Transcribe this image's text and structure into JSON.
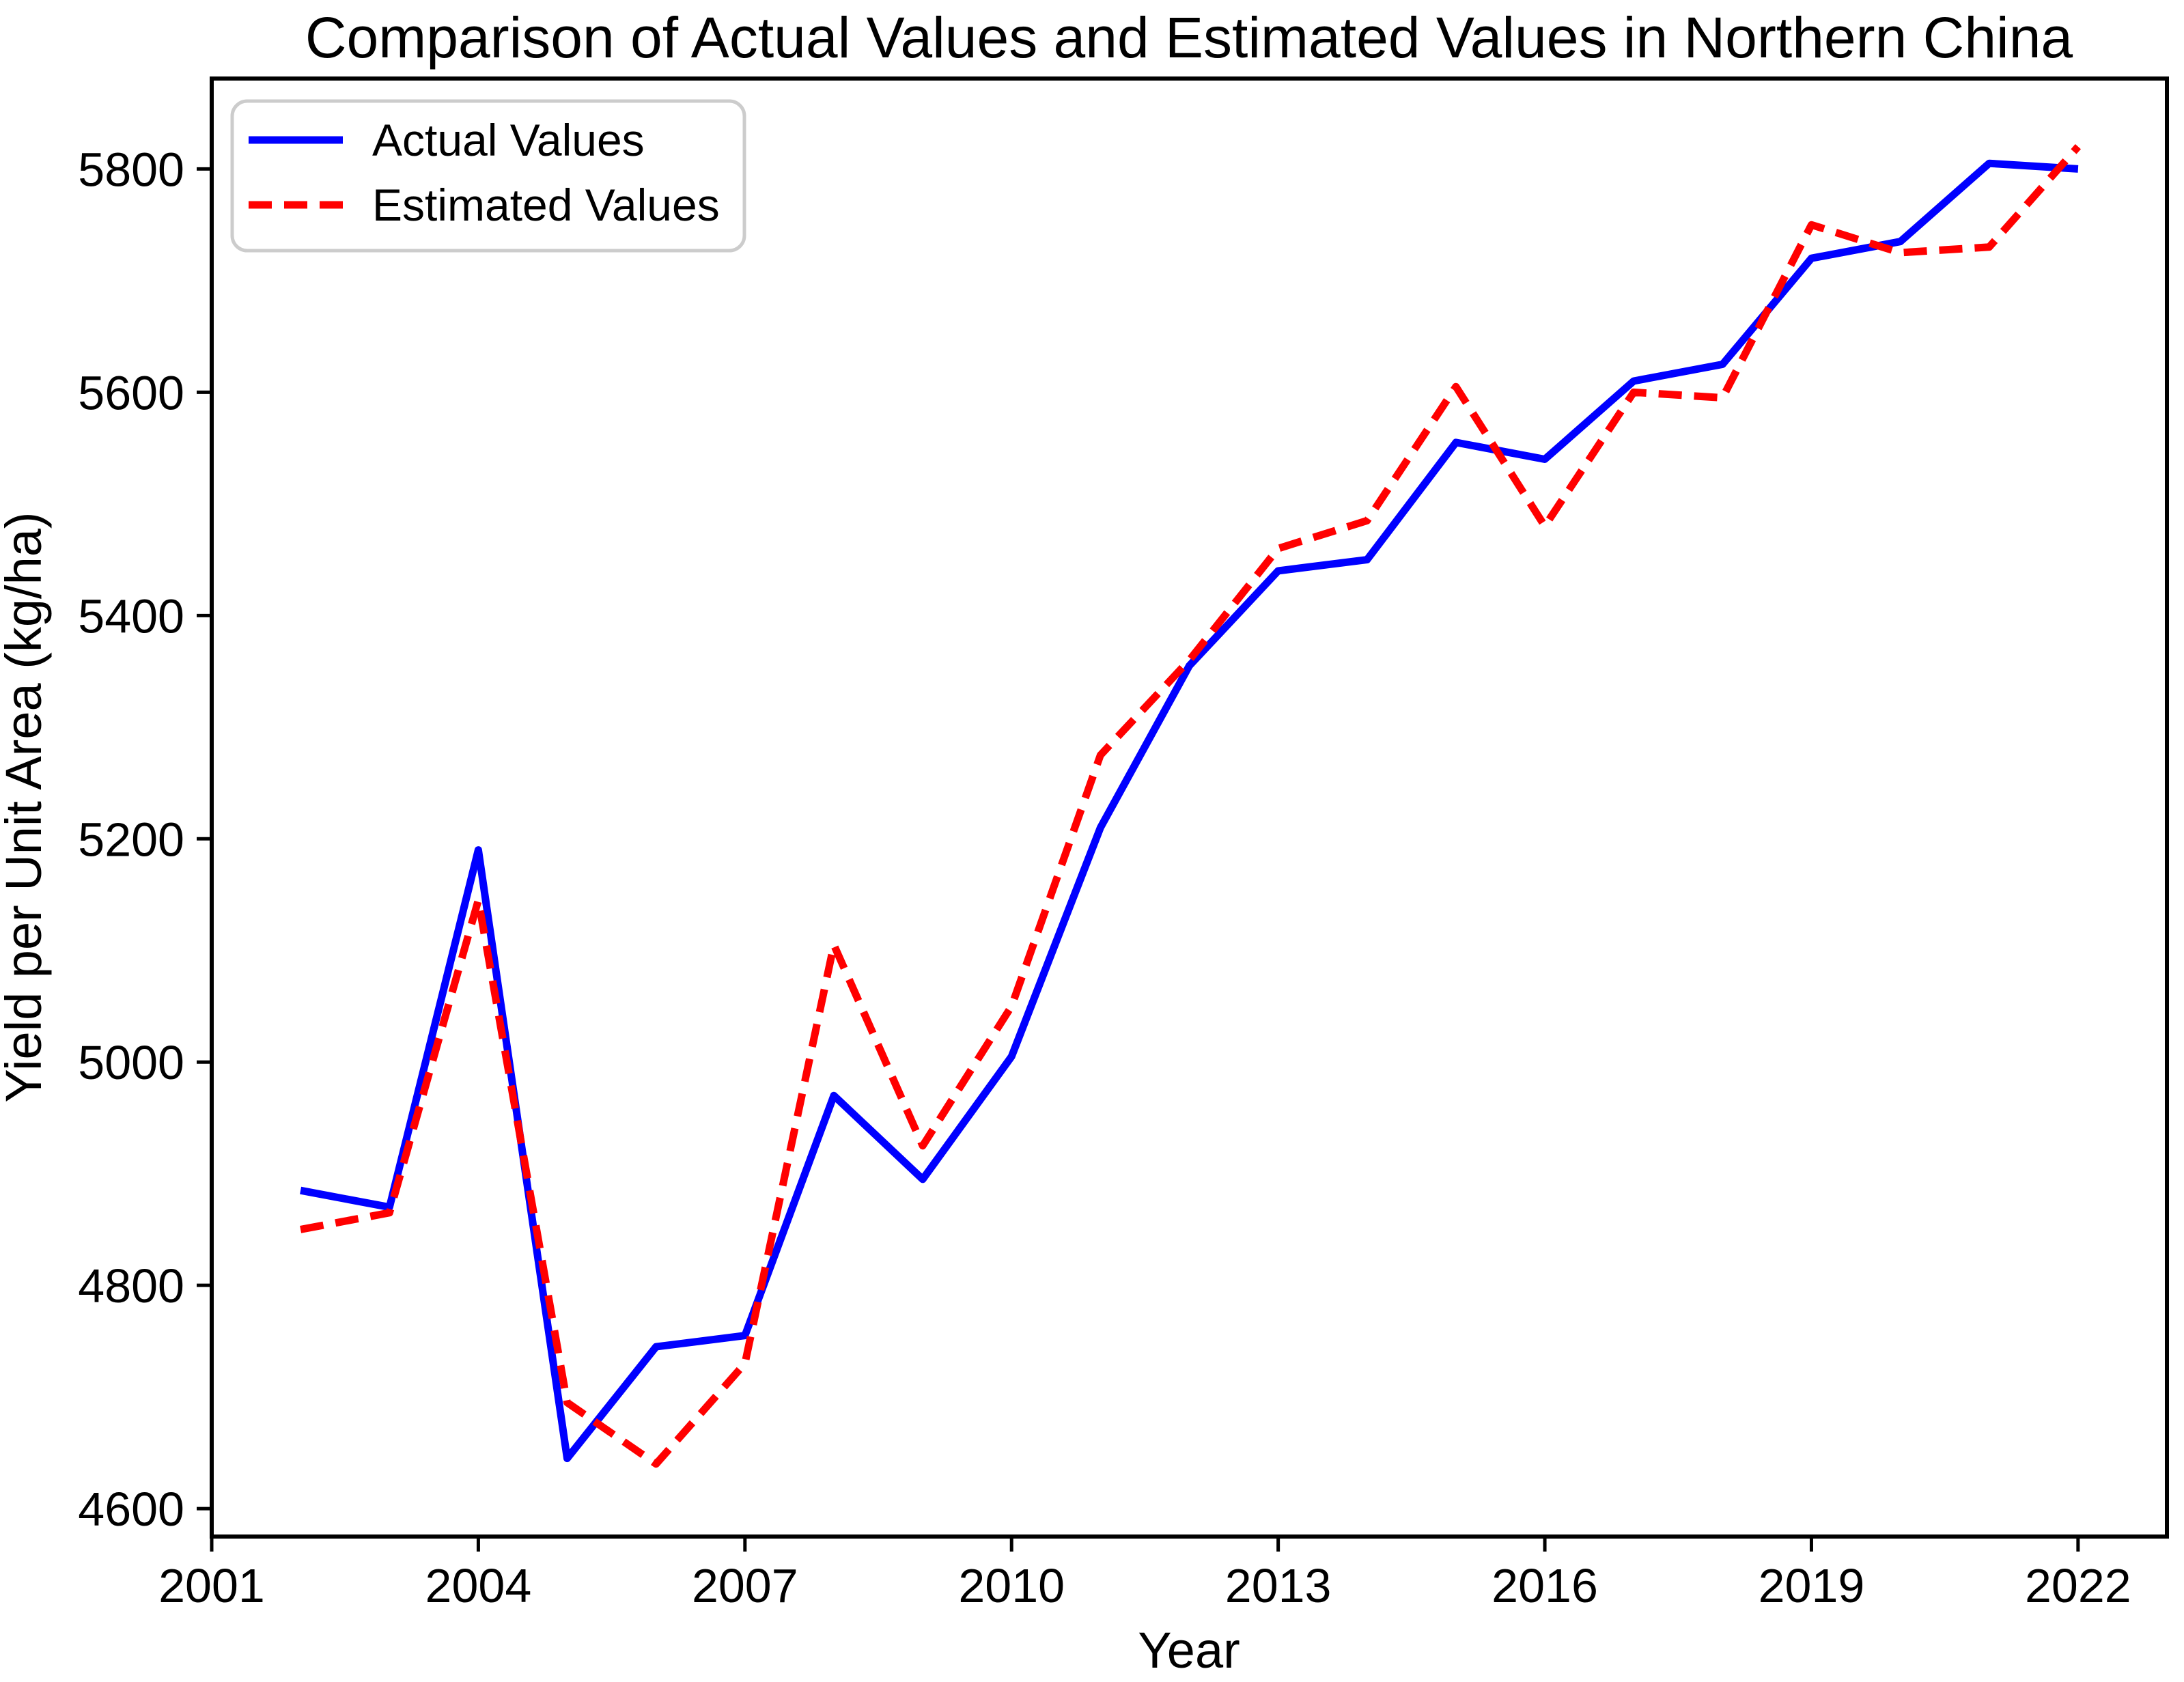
{
  "chart_data": {
    "type": "line",
    "title": "Comparison of Actual Values and Estimated Values in Northern China",
    "xlabel": "Year",
    "ylabel": "Yield per Unit Area (kg/ha)",
    "x": [
      2002,
      2003,
      2004,
      2005,
      2006,
      2007,
      2008,
      2009,
      2010,
      2011,
      2012,
      2013,
      2014,
      2015,
      2016,
      2017,
      2018,
      2019,
      2020,
      2021,
      2022
    ],
    "series": [
      {
        "name": "Actual Values",
        "color": "#0000ff",
        "style": "solid",
        "values": [
          4885,
          4870,
          5190,
          4645,
          4745,
          4755,
          4970,
          4895,
          5005,
          5210,
          5355,
          5440,
          5450,
          5555,
          5540,
          5610,
          5625,
          5720,
          5735,
          5805,
          5800
        ]
      },
      {
        "name": "Estimated Values",
        "color": "#ff0000",
        "style": "dashed",
        "values": [
          4850,
          4865,
          5145,
          4695,
          4640,
          4730,
          5105,
          4925,
          5050,
          5275,
          5360,
          5460,
          5485,
          5605,
          5480,
          5600,
          5595,
          5750,
          5725,
          5730,
          5820
        ]
      }
    ],
    "xlim": [
      2001,
      2023
    ],
    "ylim": [
      4575,
      5881
    ],
    "xticks": [
      2001,
      2004,
      2007,
      2010,
      2013,
      2016,
      2019,
      2022
    ],
    "yticks": [
      4600,
      4800,
      5000,
      5200,
      5400,
      5600,
      5800
    ],
    "grid": false,
    "legend_position": "upper-left",
    "axis_color": "#000000",
    "legend_border_color": "#cccccc"
  }
}
